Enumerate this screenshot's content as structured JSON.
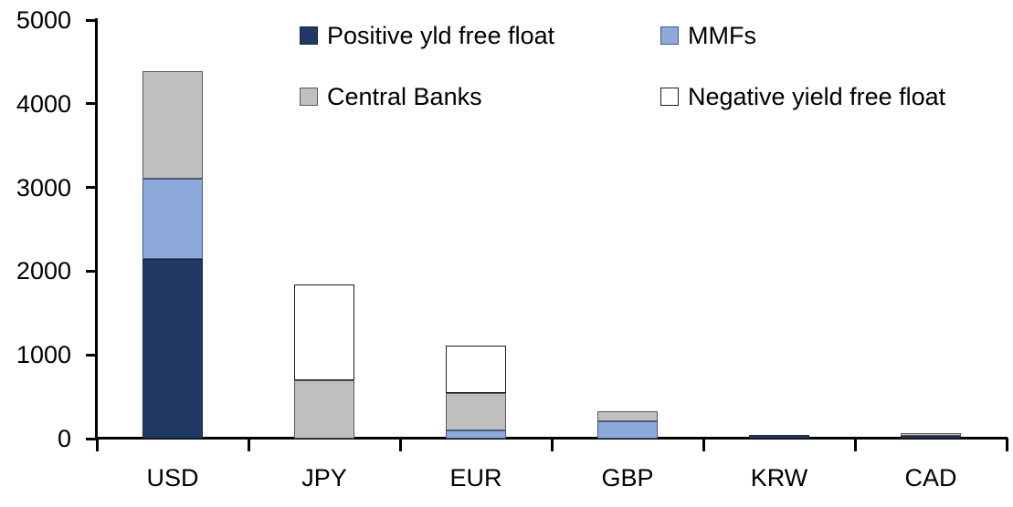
{
  "chart_data": {
    "type": "bar",
    "stacked": true,
    "title": "",
    "xlabel": "",
    "ylabel": "",
    "grid": false,
    "legend": {
      "position": "top-inside",
      "columns": 2
    },
    "ylim": [
      0,
      5000
    ],
    "yticks": [
      "0",
      "1000",
      "2000",
      "3000",
      "4000",
      "5000"
    ],
    "categories": [
      "USD",
      "JPY",
      "EUR",
      "GBP",
      "KRW",
      "CAD"
    ],
    "series": [
      {
        "name": "Positive yld free float",
        "color": "#1F3864",
        "border_color": "#17263A",
        "values": [
          2150,
          0,
          0,
          0,
          45,
          35
        ]
      },
      {
        "name": "MMFs",
        "color": "#8EAADB",
        "border_color": "#44568C",
        "values": [
          950,
          0,
          100,
          210,
          0,
          0
        ]
      },
      {
        "name": "Central Banks",
        "color": "#BFBFBF",
        "border_color": "#595959",
        "values": [
          1290,
          700,
          440,
          120,
          0,
          35
        ]
      },
      {
        "name": "Negative yield free float",
        "color": "#FFFFFF",
        "border_color": "#1A1A1A",
        "values": [
          0,
          1140,
          570,
          0,
          0,
          0
        ]
      }
    ],
    "axis_color": "#000000",
    "background_color": "#FFFFFF"
  }
}
